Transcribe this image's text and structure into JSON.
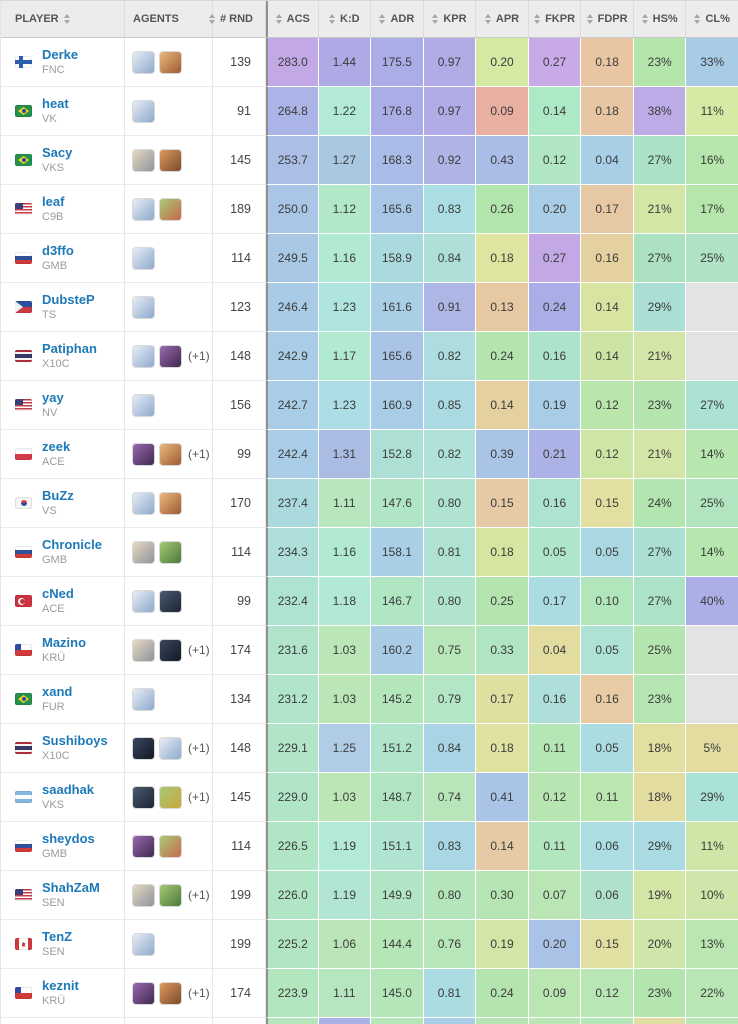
{
  "columns": [
    {
      "key": "player",
      "label": "PLAYER",
      "arrows": "right",
      "sortable": true
    },
    {
      "key": "agents",
      "label": "AGENTS",
      "arrows": "none",
      "sortable": false
    },
    {
      "key": "rnd",
      "label": "# RND",
      "arrows": "left",
      "sortable": true
    },
    {
      "key": "acs",
      "label": "ACS",
      "arrows": "left",
      "sortable": true
    },
    {
      "key": "kd",
      "label": "K:D",
      "arrows": "left",
      "sortable": true
    },
    {
      "key": "adr",
      "label": "ADR",
      "arrows": "left",
      "sortable": true
    },
    {
      "key": "kpr",
      "label": "KPR",
      "arrows": "left",
      "sortable": true
    },
    {
      "key": "apr",
      "label": "APR",
      "arrows": "left",
      "sortable": true
    },
    {
      "key": "fkpr",
      "label": "FKPR",
      "arrows": "left",
      "sortable": true
    },
    {
      "key": "fdpr",
      "label": "FDPR",
      "arrows": "left",
      "sortable": true
    },
    {
      "key": "hs",
      "label": "HS%",
      "arrows": "left",
      "sortable": true
    },
    {
      "key": "cl",
      "label": "CL%",
      "arrows": "left",
      "sortable": true
    }
  ],
  "stat_keys": [
    "acs",
    "kd",
    "adr",
    "kpr",
    "apr",
    "fkpr",
    "fdpr",
    "hs",
    "cl"
  ],
  "empty_cell_color": "#e3e3e3",
  "rows": [
    {
      "player": "Derke",
      "team": "FNC",
      "country": "fi",
      "agents": [
        [
          "#e6edf5",
          "#8fa9cc"
        ],
        [
          "#e8b87d",
          "#a05a33"
        ]
      ],
      "extra": "",
      "rnd": "139",
      "stats": [
        {
          "v": "283.0",
          "bg": "#c2a9e6"
        },
        {
          "v": "1.44",
          "bg": "#aeaae6"
        },
        {
          "v": "175.5",
          "bg": "#abaee6"
        },
        {
          "v": "0.97",
          "bg": "#b1abe6"
        },
        {
          "v": "0.20",
          "bg": "#d4e9a2"
        },
        {
          "v": "0.27",
          "bg": "#c8abe6"
        },
        {
          "v": "0.18",
          "bg": "#e9c6a3"
        },
        {
          "v": "23%",
          "bg": "#b4e5aa"
        },
        {
          "v": "33%",
          "bg": "#a8cbe6"
        }
      ]
    },
    {
      "player": "heat",
      "team": "VK",
      "country": "br",
      "agents": [
        [
          "#e6edf5",
          "#8fa9cc"
        ]
      ],
      "extra": "",
      "rnd": "91",
      "stats": [
        {
          "v": "264.8",
          "bg": "#abb4e6"
        },
        {
          "v": "1.22",
          "bg": "#b2e9d7"
        },
        {
          "v": "176.8",
          "bg": "#abaee6"
        },
        {
          "v": "0.97",
          "bg": "#b1abe6"
        },
        {
          "v": "0.09",
          "bg": "#e9b0a2"
        },
        {
          "v": "0.14",
          "bg": "#aee9c5"
        },
        {
          "v": "0.18",
          "bg": "#e9c6a3"
        },
        {
          "v": "38%",
          "bg": "#bcabe6"
        },
        {
          "v": "11%",
          "bg": "#d6e9a5"
        }
      ]
    },
    {
      "player": "Sacy",
      "team": "VKS",
      "country": "br",
      "agents": [
        [
          "#e5d9c0",
          "#8f949e"
        ],
        [
          "#dd9a5c",
          "#7d4a2d"
        ]
      ],
      "extra": "",
      "rnd": "145",
      "stats": [
        {
          "v": "253.7",
          "bg": "#abbee6"
        },
        {
          "v": "1.27",
          "bg": "#abc8e3"
        },
        {
          "v": "168.3",
          "bg": "#a9bbe6"
        },
        {
          "v": "0.92",
          "bg": "#aeb4e6"
        },
        {
          "v": "0.43",
          "bg": "#a9bde6"
        },
        {
          "v": "0.12",
          "bg": "#b0e6c2"
        },
        {
          "v": "0.04",
          "bg": "#a8cfe6"
        },
        {
          "v": "27%",
          "bg": "#abe2c5"
        },
        {
          "v": "16%",
          "bg": "#b6e6ab"
        }
      ]
    },
    {
      "player": "leaf",
      "team": "C9B",
      "country": "us",
      "agents": [
        [
          "#e6edf5",
          "#8fa9cc"
        ],
        [
          "#a8c878",
          "#c86a4a"
        ]
      ],
      "extra": "",
      "rnd": "189",
      "stats": [
        {
          "v": "250.0",
          "bg": "#a9c6e6"
        },
        {
          "v": "1.12",
          "bg": "#b1e9c8"
        },
        {
          "v": "165.6",
          "bg": "#a8c7e6"
        },
        {
          "v": "0.83",
          "bg": "#abdee2"
        },
        {
          "v": "0.26",
          "bg": "#b2e5ac"
        },
        {
          "v": "0.20",
          "bg": "#a9cde6"
        },
        {
          "v": "0.17",
          "bg": "#e6c8a5"
        },
        {
          "v": "21%",
          "bg": "#d3e6a5"
        },
        {
          "v": "17%",
          "bg": "#b6e6ac"
        }
      ]
    },
    {
      "player": "d3ffo",
      "team": "GMB",
      "country": "ru",
      "agents": [
        [
          "#e6edf5",
          "#8fa9cc"
        ]
      ],
      "extra": "",
      "rnd": "114",
      "stats": [
        {
          "v": "249.5",
          "bg": "#a9c8e6"
        },
        {
          "v": "1.16",
          "bg": "#b1e9d3"
        },
        {
          "v": "158.9",
          "bg": "#aadade"
        },
        {
          "v": "0.84",
          "bg": "#aedfd9"
        },
        {
          "v": "0.18",
          "bg": "#dfe5a0"
        },
        {
          "v": "0.27",
          "bg": "#c2a9e6"
        },
        {
          "v": "0.16",
          "bg": "#e5d1a0"
        },
        {
          "v": "27%",
          "bg": "#ace2c2"
        },
        {
          "v": "25%",
          "bg": "#b0e2c5"
        }
      ]
    },
    {
      "player": "DubsteP",
      "team": "TS",
      "country": "ph",
      "agents": [
        [
          "#e6edf5",
          "#8fa9cc"
        ]
      ],
      "extra": "",
      "rnd": "123",
      "stats": [
        {
          "v": "246.4",
          "bg": "#a9cbe6"
        },
        {
          "v": "1.23",
          "bg": "#b0e4df"
        },
        {
          "v": "161.6",
          "bg": "#a9cfe6"
        },
        {
          "v": "0.91",
          "bg": "#aeb6e6"
        },
        {
          "v": "0.13",
          "bg": "#e6c8a3"
        },
        {
          "v": "0.24",
          "bg": "#aaaee6"
        },
        {
          "v": "0.14",
          "bg": "#d8e5a2"
        },
        {
          "v": "29%",
          "bg": "#abdfd5"
        },
        {
          "v": "",
          "bg": "#e3e3e3"
        }
      ]
    },
    {
      "player": "Patiphan",
      "team": "X10C",
      "country": "th",
      "agents": [
        [
          "#e6edf5",
          "#8fa9cc"
        ],
        [
          "#9a6ab0",
          "#40284f"
        ]
      ],
      "extra": "(+1)",
      "rnd": "148",
      "stats": [
        {
          "v": "242.9",
          "bg": "#a9cde6"
        },
        {
          "v": "1.17",
          "bg": "#b1e9d1"
        },
        {
          "v": "165.6",
          "bg": "#a9c4e6"
        },
        {
          "v": "0.82",
          "bg": "#addddf"
        },
        {
          "v": "0.24",
          "bg": "#b4e5af"
        },
        {
          "v": "0.16",
          "bg": "#abe4cb"
        },
        {
          "v": "0.14",
          "bg": "#cce5a5"
        },
        {
          "v": "21%",
          "bg": "#d4e6a7"
        },
        {
          "v": "",
          "bg": "#e3e3e3"
        }
      ]
    },
    {
      "player": "yay",
      "team": "NV",
      "country": "us",
      "agents": [
        [
          "#e6edf5",
          "#8fa9cc"
        ]
      ],
      "extra": "",
      "rnd": "156",
      "stats": [
        {
          "v": "242.7",
          "bg": "#a9cde6"
        },
        {
          "v": "1.23",
          "bg": "#addee5"
        },
        {
          "v": "160.9",
          "bg": "#a9cde6"
        },
        {
          "v": "0.85",
          "bg": "#abdbe2"
        },
        {
          "v": "0.14",
          "bg": "#e5d1a0"
        },
        {
          "v": "0.19",
          "bg": "#a9cde6"
        },
        {
          "v": "0.12",
          "bg": "#bae6ac"
        },
        {
          "v": "23%",
          "bg": "#b4e5af"
        },
        {
          "v": "27%",
          "bg": "#abe2d3"
        }
      ]
    },
    {
      "player": "zeek",
      "team": "ACE",
      "country": "pl",
      "agents": [
        [
          "#9a6ab0",
          "#40284f"
        ],
        [
          "#e8b87d",
          "#a05a33"
        ]
      ],
      "extra": "(+1)",
      "rnd": "99",
      "stats": [
        {
          "v": "242.4",
          "bg": "#a9cde6"
        },
        {
          "v": "1.31",
          "bg": "#aabbe4"
        },
        {
          "v": "152.8",
          "bg": "#aedfd5"
        },
        {
          "v": "0.82",
          "bg": "#b0e2d9"
        },
        {
          "v": "0.39",
          "bg": "#a9c4e6"
        },
        {
          "v": "0.21",
          "bg": "#abb3e6"
        },
        {
          "v": "0.12",
          "bg": "#cee6a5"
        },
        {
          "v": "21%",
          "bg": "#d4e6a7"
        },
        {
          "v": "14%",
          "bg": "#b8e6af"
        }
      ]
    },
    {
      "player": "BuZz",
      "team": "VS",
      "country": "kr",
      "agents": [
        [
          "#e6edf5",
          "#8fa9cc"
        ],
        [
          "#e8b87d",
          "#a05a33"
        ]
      ],
      "extra": "",
      "rnd": "170",
      "stats": [
        {
          "v": "237.4",
          "bg": "#abdade"
        },
        {
          "v": "1.11",
          "bg": "#b8e6bf"
        },
        {
          "v": "147.6",
          "bg": "#b0e6c5"
        },
        {
          "v": "0.80",
          "bg": "#b0e4d1"
        },
        {
          "v": "0.15",
          "bg": "#e6caa5"
        },
        {
          "v": "0.16",
          "bg": "#aee2d1"
        },
        {
          "v": "0.15",
          "bg": "#e2dfa0"
        },
        {
          "v": "24%",
          "bg": "#b2e5af"
        },
        {
          "v": "25%",
          "bg": "#b0e5bf"
        }
      ]
    },
    {
      "player": "Chronicle",
      "team": "GMB",
      "country": "ru",
      "agents": [
        [
          "#e5d9c0",
          "#8f949e"
        ],
        [
          "#a8c878",
          "#4a7a3a"
        ]
      ],
      "extra": "",
      "rnd": "114",
      "stats": [
        {
          "v": "234.3",
          "bg": "#aedfdb"
        },
        {
          "v": "1.16",
          "bg": "#b2e9d3"
        },
        {
          "v": "158.1",
          "bg": "#a9cfe6"
        },
        {
          "v": "0.81",
          "bg": "#afe2d3"
        },
        {
          "v": "0.18",
          "bg": "#d5e6a2"
        },
        {
          "v": "0.05",
          "bg": "#aee6cb"
        },
        {
          "v": "0.05",
          "bg": "#aad7e2"
        },
        {
          "v": "27%",
          "bg": "#abdfd3"
        },
        {
          "v": "14%",
          "bg": "#b8e6af"
        }
      ]
    },
    {
      "player": "cNed",
      "team": "ACE",
      "country": "tr",
      "agents": [
        [
          "#e6edf5",
          "#8fa9cc"
        ],
        [
          "#4a5a70",
          "#1c2533"
        ]
      ],
      "extra": "",
      "rnd": "99",
      "stats": [
        {
          "v": "232.4",
          "bg": "#aee2d3"
        },
        {
          "v": "1.18",
          "bg": "#b2e9d5"
        },
        {
          "v": "146.7",
          "bg": "#b1e6c2"
        },
        {
          "v": "0.80",
          "bg": "#b0e4cf"
        },
        {
          "v": "0.25",
          "bg": "#b4e5af"
        },
        {
          "v": "0.17",
          "bg": "#aadce2"
        },
        {
          "v": "0.10",
          "bg": "#b1e5bb"
        },
        {
          "v": "27%",
          "bg": "#ace2c8"
        },
        {
          "v": "40%",
          "bg": "#abafe6"
        }
      ]
    },
    {
      "player": "Mazino",
      "team": "KRÜ",
      "country": "cl",
      "agents": [
        [
          "#e5d9c0",
          "#8f949e"
        ],
        [
          "#39465c",
          "#131a26"
        ]
      ],
      "extra": "(+1)",
      "rnd": "174",
      "stats": [
        {
          "v": "231.6",
          "bg": "#afe4cb"
        },
        {
          "v": "1.03",
          "bg": "#bbe6b7"
        },
        {
          "v": "160.2",
          "bg": "#a9cbe6"
        },
        {
          "v": "0.75",
          "bg": "#b8e6bb"
        },
        {
          "v": "0.33",
          "bg": "#b0e5c1"
        },
        {
          "v": "0.04",
          "bg": "#e2dca0"
        },
        {
          "v": "0.05",
          "bg": "#aee2d5"
        },
        {
          "v": "25%",
          "bg": "#b5e5af"
        },
        {
          "v": "",
          "bg": "#e3e3e3"
        }
      ]
    },
    {
      "player": "xand",
      "team": "FUR",
      "country": "br",
      "agents": [
        [
          "#e6edf5",
          "#8fa9cc"
        ]
      ],
      "extra": "",
      "rnd": "134",
      "stats": [
        {
          "v": "231.2",
          "bg": "#b0e5cb"
        },
        {
          "v": "1.03",
          "bg": "#bbe6b7"
        },
        {
          "v": "145.2",
          "bg": "#b4e6bb"
        },
        {
          "v": "0.79",
          "bg": "#b2e6c5"
        },
        {
          "v": "0.17",
          "bg": "#dfdfa0"
        },
        {
          "v": "0.16",
          "bg": "#aedfdb"
        },
        {
          "v": "0.16",
          "bg": "#e6cba5"
        },
        {
          "v": "23%",
          "bg": "#b4e5b2"
        },
        {
          "v": "",
          "bg": "#e3e3e3"
        }
      ]
    },
    {
      "player": "Sushiboys",
      "team": "X10C",
      "country": "th",
      "agents": [
        [
          "#39465c",
          "#131a26"
        ],
        [
          "#e6edf5",
          "#8fa9cc"
        ]
      ],
      "extra": "(+1)",
      "rnd": "148",
      "stats": [
        {
          "v": "229.1",
          "bg": "#b0e5c8"
        },
        {
          "v": "1.25",
          "bg": "#b0cce6"
        },
        {
          "v": "151.2",
          "bg": "#b0e4cb"
        },
        {
          "v": "0.84",
          "bg": "#a9d4e6"
        },
        {
          "v": "0.18",
          "bg": "#dfe2a1"
        },
        {
          "v": "0.11",
          "bg": "#b5e6b5"
        },
        {
          "v": "0.05",
          "bg": "#aadce2"
        },
        {
          "v": "18%",
          "bg": "#e2dfa1"
        },
        {
          "v": "5%",
          "bg": "#e2dca1"
        }
      ]
    },
    {
      "player": "saadhak",
      "team": "VKS",
      "country": "ar",
      "agents": [
        [
          "#4a5a70",
          "#1c2533"
        ],
        [
          "#a8c878",
          "#c8a83a"
        ]
      ],
      "extra": "(+1)",
      "rnd": "145",
      "stats": [
        {
          "v": "229.0",
          "bg": "#b0e5c8"
        },
        {
          "v": "1.03",
          "bg": "#bce6b5"
        },
        {
          "v": "148.7",
          "bg": "#b1e5c2"
        },
        {
          "v": "0.74",
          "bg": "#b8e6ba"
        },
        {
          "v": "0.41",
          "bg": "#a9c4e6"
        },
        {
          "v": "0.12",
          "bg": "#b7e6b2"
        },
        {
          "v": "0.11",
          "bg": "#bae6af"
        },
        {
          "v": "18%",
          "bg": "#e2dca1"
        },
        {
          "v": "29%",
          "bg": "#abe2d7"
        }
      ]
    },
    {
      "player": "sheydos",
      "team": "GMB",
      "country": "ru",
      "agents": [
        [
          "#9a6ab0",
          "#40284f"
        ],
        [
          "#a8c878",
          "#c86a4a"
        ]
      ],
      "extra": "",
      "rnd": "114",
      "stats": [
        {
          "v": "226.5",
          "bg": "#b0e6c5"
        },
        {
          "v": "1.19",
          "bg": "#b2e9d8"
        },
        {
          "v": "151.1",
          "bg": "#b0e4d1"
        },
        {
          "v": "0.83",
          "bg": "#aad7e4"
        },
        {
          "v": "0.14",
          "bg": "#e6caa5"
        },
        {
          "v": "0.11",
          "bg": "#b2e6bf"
        },
        {
          "v": "0.06",
          "bg": "#acdde2"
        },
        {
          "v": "29%",
          "bg": "#aadbe2"
        },
        {
          "v": "11%",
          "bg": "#cee6a7"
        }
      ]
    },
    {
      "player": "ShahZaM",
      "team": "SEN",
      "country": "us",
      "agents": [
        [
          "#e5d9c0",
          "#8f949e"
        ],
        [
          "#a8c878",
          "#4a7a3a"
        ]
      ],
      "extra": "(+1)",
      "rnd": "199",
      "stats": [
        {
          "v": "226.0",
          "bg": "#b0e6c5"
        },
        {
          "v": "1.19",
          "bg": "#b0e6d3"
        },
        {
          "v": "149.9",
          "bg": "#b1e5c5"
        },
        {
          "v": "0.80",
          "bg": "#b5e5bb"
        },
        {
          "v": "0.30",
          "bg": "#b5e5b2"
        },
        {
          "v": "0.07",
          "bg": "#bae6b5"
        },
        {
          "v": "0.06",
          "bg": "#b0e2cb"
        },
        {
          "v": "19%",
          "bg": "#d4e6a5"
        },
        {
          "v": "10%",
          "bg": "#cfe6aa"
        }
      ]
    },
    {
      "player": "TenZ",
      "team": "SEN",
      "country": "ca",
      "agents": [
        [
          "#e6edf5",
          "#8fa9cc"
        ]
      ],
      "extra": "",
      "rnd": "199",
      "stats": [
        {
          "v": "225.2",
          "bg": "#b2e6c2"
        },
        {
          "v": "1.06",
          "bg": "#bbe6ba"
        },
        {
          "v": "144.4",
          "bg": "#b5e6b7"
        },
        {
          "v": "0.76",
          "bg": "#b8e6bb"
        },
        {
          "v": "0.19",
          "bg": "#d1e6a7"
        },
        {
          "v": "0.20",
          "bg": "#a9c2e6"
        },
        {
          "v": "0.15",
          "bg": "#e2dfa2"
        },
        {
          "v": "20%",
          "bg": "#cee6a9"
        },
        {
          "v": "13%",
          "bg": "#bae6b2"
        }
      ]
    },
    {
      "player": "keznit",
      "team": "KRÜ",
      "country": "cl",
      "agents": [
        [
          "#9a6ab0",
          "#40284f"
        ],
        [
          "#dd9a5c",
          "#7d4a2d"
        ]
      ],
      "extra": "(+1)",
      "rnd": "174",
      "stats": [
        {
          "v": "223.9",
          "bg": "#b2e6bf"
        },
        {
          "v": "1.11",
          "bg": "#b5e6bf"
        },
        {
          "v": "145.0",
          "bg": "#b5e6b9"
        },
        {
          "v": "0.81",
          "bg": "#aadce2"
        },
        {
          "v": "0.24",
          "bg": "#b5e5af"
        },
        {
          "v": "0.09",
          "bg": "#bae6b2"
        },
        {
          "v": "0.12",
          "bg": "#b8e6b5"
        },
        {
          "v": "23%",
          "bg": "#b4e5af"
        },
        {
          "v": "22%",
          "bg": "#b8e6b5"
        }
      ]
    }
  ],
  "next_row_sliver": [
    "#b4e6bb",
    "#aab3e6",
    "#b5e6b7",
    "#a9cde6",
    "#b5e5b2",
    "#b8e6b5",
    "#b5e5bb",
    "#dfdda2",
    "#b8e6b5"
  ]
}
